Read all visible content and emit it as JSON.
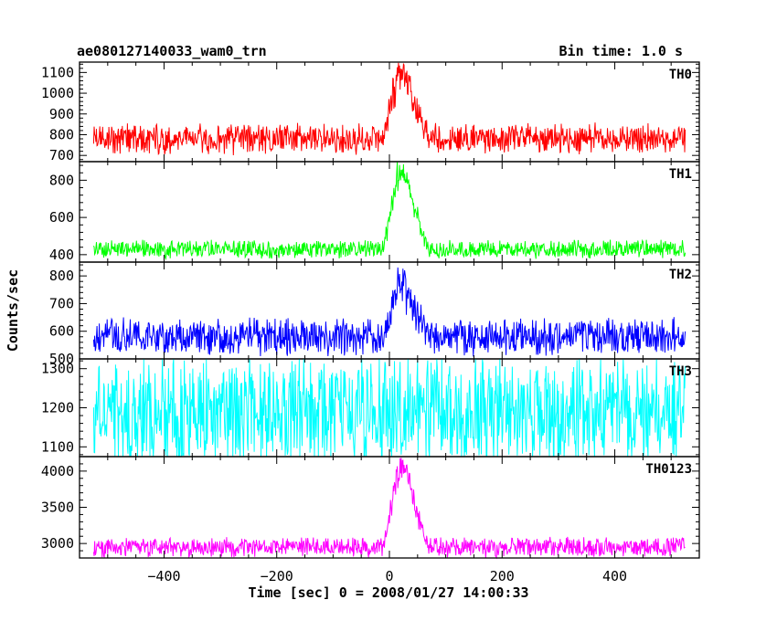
{
  "header": {
    "object_name": "ae080127140033_wam0_trn",
    "bin_time": "Bin time: 1.0 s"
  },
  "chart_data": {
    "type": "line",
    "title": "ae080127140033_wam0_trn",
    "subtitle": "Bin time: 1.0 s",
    "xlabel": "Time [sec] 0 = 2008/01/27 14:00:33",
    "ylabel": "Counts/sec",
    "xlim": [
      -550,
      550
    ],
    "x_ticks": [
      -400,
      -200,
      0,
      200,
      400
    ],
    "x_tick_labels": [
      "−400",
      "−200",
      "0",
      "200",
      "400"
    ],
    "x_range_data": [
      -525,
      525
    ],
    "bin_time_s": 1.0,
    "burst": {
      "rise_start": -10,
      "peak_start": 5,
      "peak_end": 40,
      "decay_end": 70
    },
    "grid": false,
    "legend": "none",
    "series": [
      {
        "name": "TH0",
        "color": "#ff0000",
        "ylim": [
          670,
          1150
        ],
        "y_ticks": [
          700,
          800,
          900,
          1000,
          1100
        ],
        "background": 780,
        "noise_peak_to_peak": 120,
        "peak": 1150
      },
      {
        "name": "TH1",
        "color": "#00ff00",
        "ylim": [
          360,
          900
        ],
        "y_ticks": [
          400,
          600,
          800
        ],
        "background": 430,
        "noise_peak_to_peak": 80,
        "peak": 880
      },
      {
        "name": "TH2",
        "color": "#0000ff",
        "ylim": [
          500,
          850
        ],
        "y_ticks": [
          500,
          600,
          700,
          800
        ],
        "background": 580,
        "noise_peak_to_peak": 110,
        "peak": 800
      },
      {
        "name": "TH3",
        "color": "#00ffff",
        "ylim": [
          1075,
          1325
        ],
        "y_ticks": [
          1100,
          1200,
          1300
        ],
        "background": 1190,
        "noise_peak_to_peak": 230,
        "peak": 1300
      },
      {
        "name": "TH0123",
        "color": "#ff00ff",
        "ylim": [
          2800,
          4200
        ],
        "y_ticks": [
          3000,
          3500,
          4000
        ],
        "background": 2950,
        "noise_peak_to_peak": 220,
        "peak": 4150
      }
    ]
  }
}
